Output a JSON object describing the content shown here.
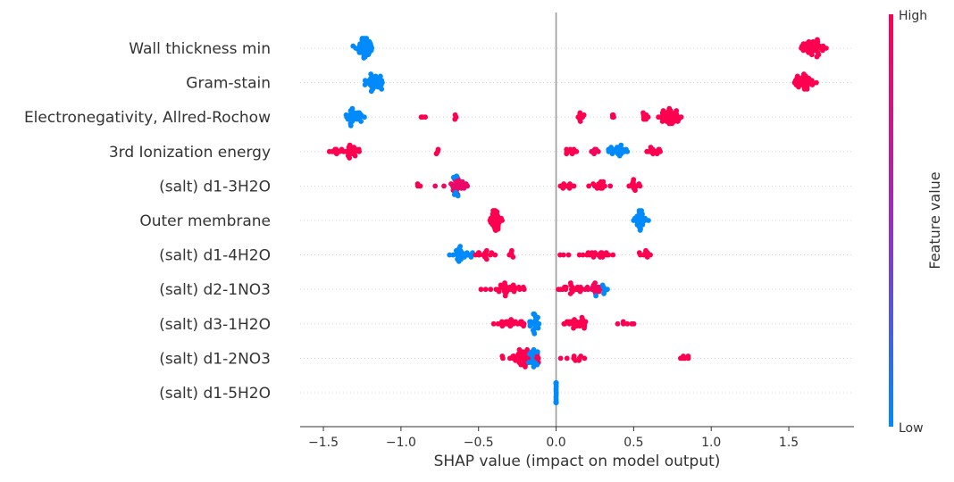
{
  "chart_data": {
    "type": "scatter",
    "subtype": "shap-beeswarm",
    "title": "",
    "xlabel": "SHAP value (impact on model output)",
    "ylabel": "",
    "xlim": [
      -1.65,
      1.92
    ],
    "xticks": [
      -1.5,
      -1.0,
      -0.5,
      0.0,
      0.5,
      1.0,
      1.5
    ],
    "xtick_labels": [
      "−1.5",
      "−1.0",
      "−0.5",
      "0.0",
      "0.5",
      "1.0",
      "1.5"
    ],
    "grid": false,
    "zero_line": 0.0,
    "colorbar": {
      "label": "Feature value",
      "high_label": "High",
      "low_label": "Low",
      "low_color": "#008afb",
      "mid_color": "#9a2dbd",
      "high_color": "#ff0051",
      "placement": "right"
    },
    "features": [
      {
        "name": "Wall thickness min",
        "clusters": [
          {
            "x": -1.23,
            "spread": 0.06,
            "n": 40,
            "v": 0.0
          },
          {
            "x": 1.66,
            "spread": 0.08,
            "n": 40,
            "v": 1.0
          }
        ]
      },
      {
        "name": "Gram-stain",
        "clusters": [
          {
            "x": -1.17,
            "spread": 0.06,
            "n": 35,
            "v": 0.0
          },
          {
            "x": 1.59,
            "spread": 0.07,
            "n": 35,
            "v": 1.0
          }
        ]
      },
      {
        "name": "Electronegativity, Allred-Rochow",
        "clusters": [
          {
            "x": -1.31,
            "spread": 0.07,
            "n": 28,
            "v": 0.0
          },
          {
            "x": -0.86,
            "spread": 0.02,
            "n": 3,
            "v": 1.0
          },
          {
            "x": -0.65,
            "spread": 0.01,
            "n": 4,
            "v": 1.0
          },
          {
            "x": 0.16,
            "spread": 0.02,
            "n": 8,
            "v": 1.0
          },
          {
            "x": 0.37,
            "spread": 0.01,
            "n": 4,
            "v": 1.0
          },
          {
            "x": 0.56,
            "spread": 0.03,
            "n": 8,
            "v": 1.0
          },
          {
            "x": 0.74,
            "spread": 0.07,
            "n": 40,
            "v": 1.0
          }
        ]
      },
      {
        "name": "3rd Ionization energy",
        "clusters": [
          {
            "x": -1.36,
            "spread": 0.12,
            "n": 28,
            "v": 1.0
          },
          {
            "x": -0.78,
            "spread": 0.03,
            "n": 3,
            "v": 1.0
          },
          {
            "x": 0.1,
            "spread": 0.06,
            "n": 10,
            "v": 1.0
          },
          {
            "x": 0.25,
            "spread": 0.04,
            "n": 6,
            "v": 0.95
          },
          {
            "x": 0.4,
            "spread": 0.1,
            "n": 22,
            "v": 0.0
          },
          {
            "x": 0.65,
            "spread": 0.06,
            "n": 12,
            "v": 1.0
          }
        ]
      },
      {
        "name": "(salt)  d1-3H2O",
        "clusters": [
          {
            "x": -0.88,
            "spread": 0.02,
            "n": 3,
            "v": 1.0
          },
          {
            "x": -0.64,
            "spread": 0.08,
            "n": 30,
            "v": 0.9
          },
          {
            "x": -0.64,
            "spread": 0.03,
            "n": 6,
            "v": 0.0
          },
          {
            "x": 0.07,
            "spread": 0.04,
            "n": 10,
            "v": 1.0
          },
          {
            "x": 0.28,
            "spread": 0.06,
            "n": 16,
            "v": 1.0
          },
          {
            "x": 0.5,
            "spread": 0.03,
            "n": 12,
            "v": 1.0
          }
        ]
      },
      {
        "name": "Outer membrane",
        "clusters": [
          {
            "x": -0.39,
            "spread": 0.04,
            "n": 34,
            "v": 1.0
          },
          {
            "x": 0.54,
            "spread": 0.04,
            "n": 28,
            "v": 0.0
          }
        ]
      },
      {
        "name": "(salt) d1-4H2O",
        "clusters": [
          {
            "x": -0.6,
            "spread": 0.06,
            "n": 24,
            "v": 0.0
          },
          {
            "x": -0.46,
            "spread": 0.08,
            "n": 14,
            "v": 1.0
          },
          {
            "x": -0.28,
            "spread": 0.03,
            "n": 5,
            "v": 1.0
          },
          {
            "x": 0.03,
            "spread": 0.02,
            "n": 2,
            "v": 1.0
          },
          {
            "x": 0.25,
            "spread": 0.1,
            "n": 22,
            "v": 1.0
          },
          {
            "x": 0.58,
            "spread": 0.07,
            "n": 10,
            "v": 1.0
          }
        ]
      },
      {
        "name": "(salt) d2-1NO3",
        "clusters": [
          {
            "x": -0.3,
            "spread": 0.14,
            "n": 30,
            "v": 1.0
          },
          {
            "x": 0.1,
            "spread": 0.08,
            "n": 20,
            "v": 1.0
          },
          {
            "x": 0.25,
            "spread": 0.06,
            "n": 16,
            "v": 0.95
          },
          {
            "x": 0.3,
            "spread": 0.05,
            "n": 6,
            "v": 0.0
          }
        ]
      },
      {
        "name": "(salt) d3-1H2O",
        "clusters": [
          {
            "x": -0.3,
            "spread": 0.08,
            "n": 22,
            "v": 1.0
          },
          {
            "x": -0.14,
            "spread": 0.03,
            "n": 24,
            "v": 0.0
          },
          {
            "x": 0.13,
            "spread": 0.1,
            "n": 26,
            "v": 1.0
          },
          {
            "x": 0.46,
            "spread": 0.12,
            "n": 6,
            "v": 1.0
          }
        ]
      },
      {
        "name": "(salt) d1-2NO3",
        "clusters": [
          {
            "x": -0.2,
            "spread": 0.14,
            "n": 50,
            "v": 1.0
          },
          {
            "x": -0.14,
            "spread": 0.05,
            "n": 14,
            "v": 0.0
          },
          {
            "x": 0.12,
            "spread": 0.06,
            "n": 8,
            "v": 1.0
          },
          {
            "x": 0.82,
            "spread": 0.04,
            "n": 6,
            "v": 1.0
          }
        ]
      },
      {
        "name": "(salt)  d1-5H2O",
        "clusters": [
          {
            "x": 0.0,
            "spread": 0.001,
            "n": 40,
            "v": 0.0
          }
        ]
      }
    ]
  }
}
